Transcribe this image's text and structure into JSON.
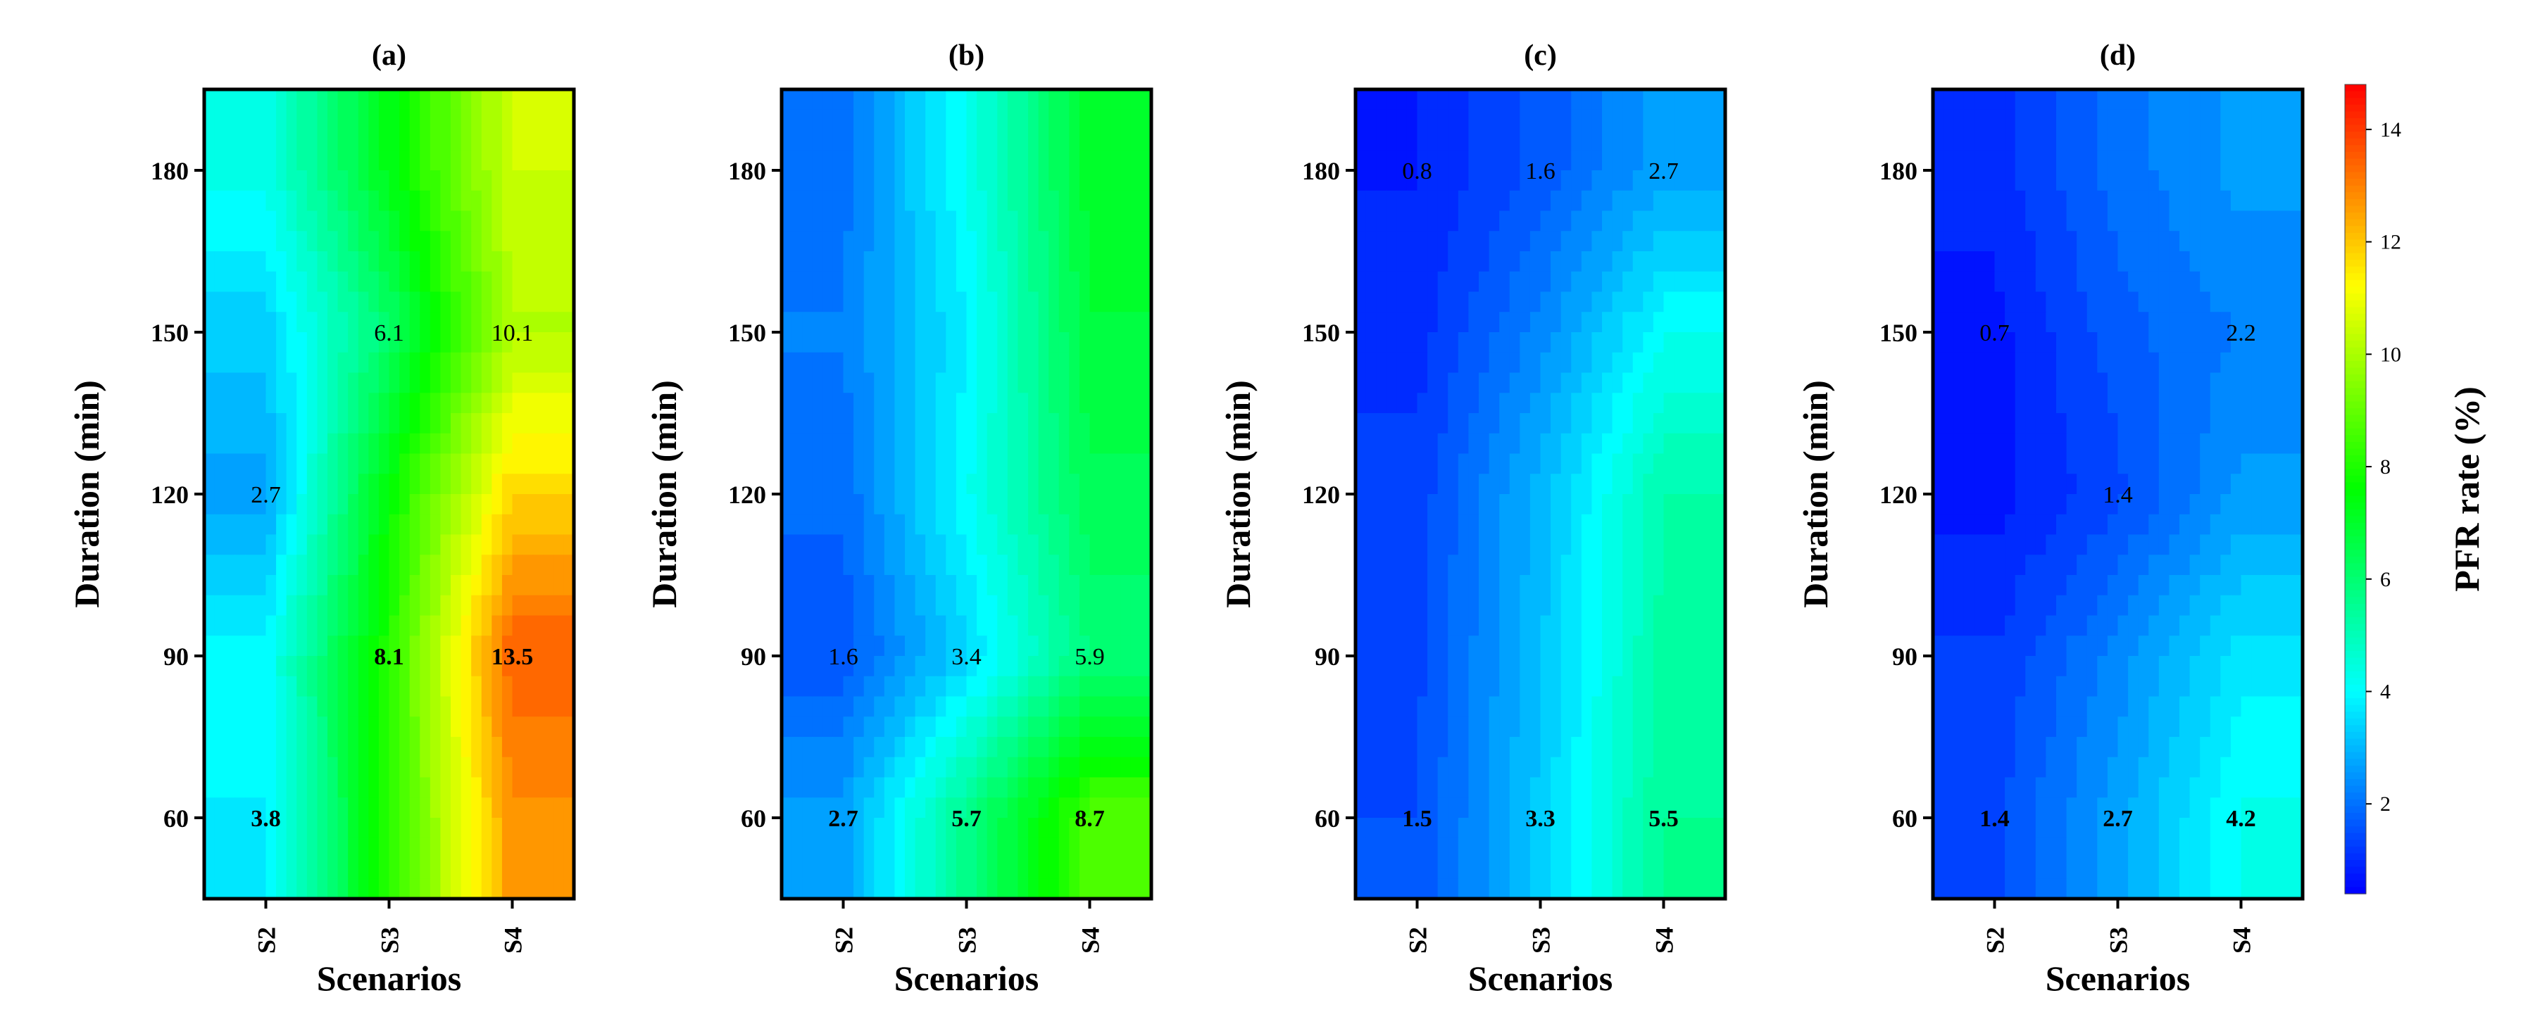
{
  "chart_data": [
    {
      "type": "heatmap",
      "panel": "(a)",
      "xlabel": "Scenarios",
      "ylabel": "Duration (min)",
      "categories": [
        "S2",
        "S3",
        "S4"
      ],
      "y": [
        60,
        90,
        120,
        150,
        180
      ],
      "ylim": [
        45,
        195
      ],
      "yticks": [
        60,
        90,
        120,
        150,
        180
      ],
      "z": [
        [
          3.8,
          8.1,
          12.7
        ],
        [
          4.0,
          8.1,
          13.5
        ],
        [
          2.7,
          7.6,
          11.8
        ],
        [
          3.3,
          6.1,
          10.1
        ],
        [
          4.3,
          7.3,
          10.5
        ]
      ],
      "labels": [
        {
          "x": "S2",
          "y": 60,
          "text": "3.8",
          "bold": true
        },
        {
          "x": "S3",
          "y": 90,
          "text": "8.1",
          "bold": true
        },
        {
          "x": "S4",
          "y": 90,
          "text": "13.5",
          "bold": true
        },
        {
          "x": "S2",
          "y": 120,
          "text": "2.7",
          "bold": false
        },
        {
          "x": "S3",
          "y": 150,
          "text": "6.1",
          "bold": false
        },
        {
          "x": "S4",
          "y": 150,
          "text": "10.1",
          "bold": false
        }
      ]
    },
    {
      "type": "heatmap",
      "panel": "(b)",
      "xlabel": "Scenarios",
      "ylabel": "Duration (min)",
      "categories": [
        "S2",
        "S3",
        "S4"
      ],
      "y": [
        60,
        90,
        120,
        150,
        180
      ],
      "ylim": [
        45,
        195
      ],
      "yticks": [
        60,
        90,
        120,
        150,
        180
      ],
      "z": [
        [
          2.7,
          5.7,
          8.7
        ],
        [
          1.6,
          3.4,
          5.9
        ],
        [
          1.9,
          4.1,
          6.4
        ],
        [
          2.2,
          3.8,
          6.8
        ],
        [
          2.0,
          4.2,
          7.0
        ]
      ],
      "labels": [
        {
          "x": "S2",
          "y": 60,
          "text": "2.7",
          "bold": true
        },
        {
          "x": "S3",
          "y": 60,
          "text": "5.7",
          "bold": true
        },
        {
          "x": "S4",
          "y": 60,
          "text": "8.7",
          "bold": true
        },
        {
          "x": "S2",
          "y": 90,
          "text": "1.6",
          "bold": false
        },
        {
          "x": "S3",
          "y": 90,
          "text": "3.4",
          "bold": false
        },
        {
          "x": "S4",
          "y": 90,
          "text": "5.9",
          "bold": false
        }
      ]
    },
    {
      "type": "heatmap",
      "panel": "(c)",
      "xlabel": "Scenarios",
      "ylabel": "Duration (min)",
      "categories": [
        "S2",
        "S3",
        "S4"
      ],
      "y": [
        60,
        90,
        120,
        150,
        180
      ],
      "ylim": [
        45,
        195
      ],
      "yticks": [
        60,
        90,
        120,
        150,
        180
      ],
      "z": [
        [
          1.5,
          3.3,
          5.5
        ],
        [
          1.4,
          3.1,
          5.3
        ],
        [
          1.3,
          3.0,
          5.2
        ],
        [
          1.0,
          2.3,
          4.1
        ],
        [
          0.8,
          1.6,
          2.7
        ]
      ],
      "labels": [
        {
          "x": "S2",
          "y": 180,
          "text": "0.8",
          "bold": false
        },
        {
          "x": "S3",
          "y": 180,
          "text": "1.6",
          "bold": false
        },
        {
          "x": "S4",
          "y": 180,
          "text": "2.7",
          "bold": false
        },
        {
          "x": "S2",
          "y": 60,
          "text": "1.5",
          "bold": true
        },
        {
          "x": "S3",
          "y": 60,
          "text": "3.3",
          "bold": true
        },
        {
          "x": "S4",
          "y": 60,
          "text": "5.5",
          "bold": true
        }
      ]
    },
    {
      "type": "heatmap",
      "panel": "(d)",
      "xlabel": "Scenarios",
      "ylabel": "Duration (min)",
      "categories": [
        "S2",
        "S3",
        "S4"
      ],
      "y": [
        60,
        90,
        120,
        150,
        180
      ],
      "ylim": [
        45,
        195
      ],
      "yticks": [
        60,
        90,
        120,
        150,
        180
      ],
      "z": [
        [
          1.4,
          2.7,
          4.2
        ],
        [
          1.2,
          2.3,
          3.7
        ],
        [
          0.7,
          1.4,
          2.6
        ],
        [
          0.7,
          1.7,
          2.2
        ],
        [
          1.0,
          2.0,
          2.6
        ]
      ],
      "labels": [
        {
          "x": "S2",
          "y": 150,
          "text": "0.7",
          "bold": false
        },
        {
          "x": "S4",
          "y": 150,
          "text": "2.2",
          "bold": false
        },
        {
          "x": "S3",
          "y": 120,
          "text": "1.4",
          "bold": false
        },
        {
          "x": "S2",
          "y": 60,
          "text": "1.4",
          "bold": true
        },
        {
          "x": "S3",
          "y": 60,
          "text": "2.7",
          "bold": true
        },
        {
          "x": "S4",
          "y": 60,
          "text": "4.2",
          "bold": true
        }
      ]
    }
  ],
  "colorbar": {
    "title": "PFR rate (%)",
    "range": [
      0.4,
      14.8
    ],
    "ticks": [
      "2",
      "4",
      "6",
      "8",
      "10",
      "12",
      "14"
    ],
    "tick_values": [
      2,
      4,
      6,
      8,
      10,
      12,
      14
    ],
    "colormap": [
      "#0000ff",
      "#00ffff",
      "#00ff00",
      "#ffff00",
      "#ff0000"
    ]
  }
}
